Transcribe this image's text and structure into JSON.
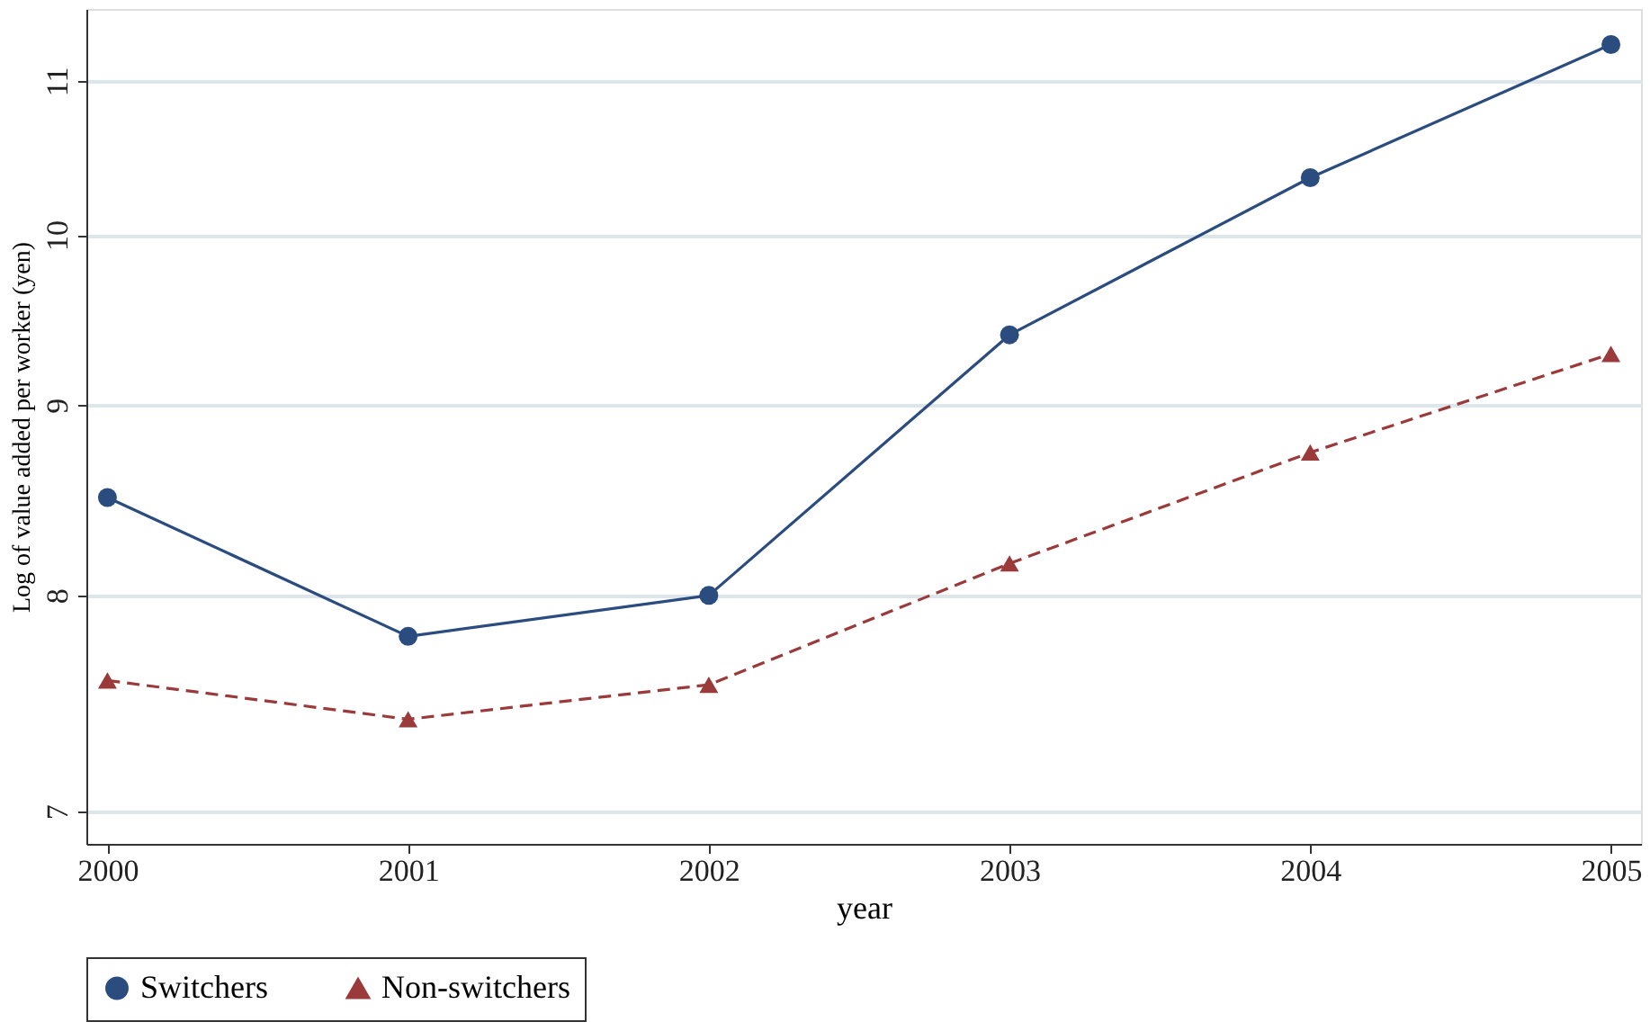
{
  "chart_data": {
    "type": "line",
    "xlabel": "year",
    "ylabel": "Log of value added per worker (yen)",
    "x": [
      2000,
      2001,
      2002,
      2003,
      2004,
      2005
    ],
    "series": [
      {
        "name": "Switchers",
        "color": "#2b4c7e",
        "marker": "circle",
        "line_style": "solid",
        "values": [
          8.5,
          7.8,
          8.0,
          9.4,
          10.36,
          11.25
        ]
      },
      {
        "name": "Non-switchers",
        "color": "#9b3a3a",
        "marker": "triangle",
        "line_style": "dashed",
        "values": [
          7.59,
          7.41,
          7.57,
          8.16,
          8.74,
          9.29
        ]
      }
    ],
    "log": "y",
    "xlim": [
      1999.93,
      2005.1
    ],
    "xticks": [
      2000,
      2001,
      2002,
      2003,
      2004,
      2005
    ],
    "ylim": [
      6.86,
      11.5
    ],
    "yticks": [
      7,
      8,
      9,
      10,
      11
    ],
    "grid": "y",
    "legend": "bottom"
  }
}
